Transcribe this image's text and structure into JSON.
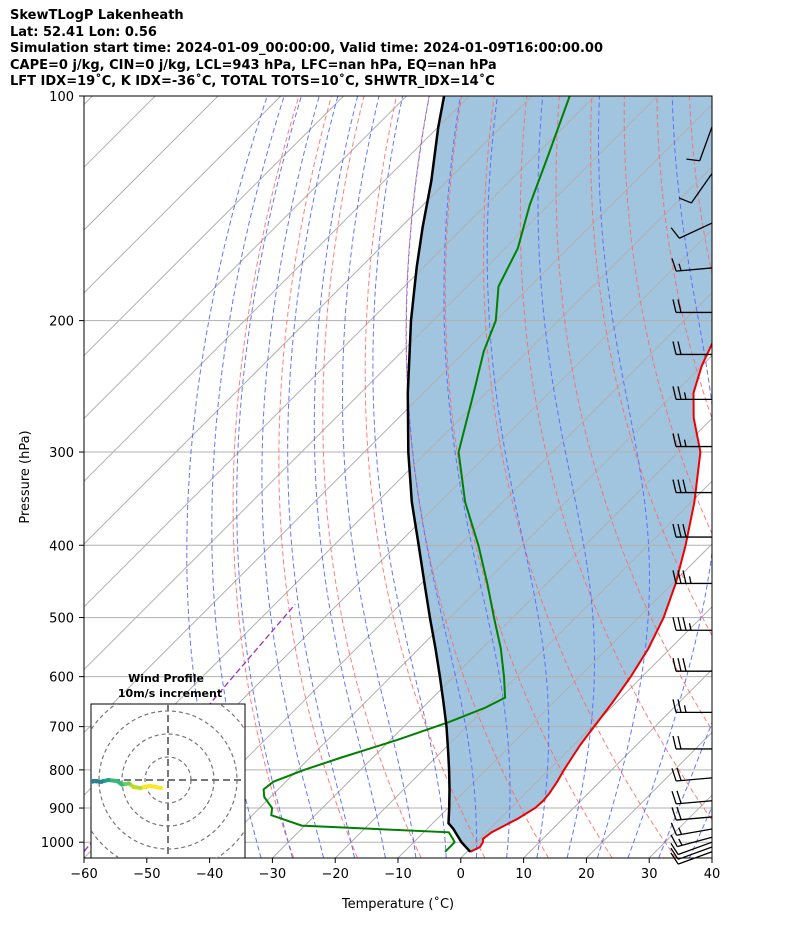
{
  "header": {
    "line1": "SkewTLogP Lakenheath",
    "line2": "Lat: 52.41   Lon: 0.56",
    "line3": "Simulation start time: 2024-01-09_00:00:00, Valid time: 2024-01-09T16:00:00.00",
    "line4": "CAPE=0 j/kg, CIN=0 j/kg, LCL=943 hPa, LFC=nan hPa, EQ=nan hPa",
    "line5": "LFT IDX=19˚C, K IDX=-36˚C, TOTAL TOTS=10˚C, SHWTR_IDX=14˚C"
  },
  "colors": {
    "temperature": "#ee0000",
    "dewpoint": "#008000",
    "parcel": "#000000",
    "shade": "#a2c5df",
    "dry_adiabat": "#ff6666",
    "moist_adiabat": "#5566ff",
    "mixing_ratio": "#9a33bb",
    "isotherm": "#b0b0b0"
  },
  "chart_data": {
    "type": "skewt-logp",
    "xlabel": "Temperature (˚C)",
    "ylabel": "Pressure (hPa)",
    "xlim": [
      -60,
      40
    ],
    "ylim": [
      1050,
      100
    ],
    "xticks": [
      "-60",
      "-50",
      "-40",
      "-30",
      "-20",
      "-10",
      "0",
      "10",
      "20",
      "30",
      "40"
    ],
    "yticks": [
      "100",
      "200",
      "300",
      "400",
      "500",
      "600",
      "700",
      "800",
      "900",
      "1000"
    ],
    "grid": true,
    "temperature_profile": {
      "p": [
        1030,
        1015,
        1000,
        990,
        970,
        950,
        930,
        900,
        880,
        860,
        830,
        800,
        770,
        740,
        700,
        650,
        600,
        550,
        500,
        450,
        400,
        350,
        300,
        270,
        250,
        230,
        210,
        200,
        180,
        160,
        140,
        120,
        110,
        100
      ],
      "t": [
        0.5,
        1.3,
        1.0,
        0.5,
        0.8,
        1.8,
        2.8,
        3.9,
        4.0,
        3.8,
        3.2,
        2.4,
        1.7,
        1.0,
        0.3,
        -0.6,
        -1.8,
        -3.5,
        -6.0,
        -9.5,
        -14.0,
        -19.5,
        -26.5,
        -33.0,
        -37.0,
        -40.0,
        -42.5,
        -44.0,
        -48.5,
        -53.5,
        -56.0,
        -58.5,
        -60.0,
        -61.5
      ]
    },
    "dewpoint_profile": {
      "p": [
        1030,
        1000,
        990,
        970,
        950,
        920,
        900,
        870,
        850,
        830,
        800,
        770,
        730,
        690,
        660,
        640,
        600,
        550,
        500,
        450,
        400,
        350,
        300,
        250,
        220,
        200,
        180,
        160,
        140,
        120,
        100
      ],
      "td": [
        -3.5,
        -3.5,
        -4.3,
        -6.0,
        -30.5,
        -37.0,
        -38.0,
        -41.0,
        -42.3,
        -42.0,
        -39.0,
        -35.0,
        -29.0,
        -23.5,
        -20.0,
        -18.5,
        -22.0,
        -27.0,
        -33.0,
        -39.5,
        -47.0,
        -56.0,
        -65.0,
        -72.0,
        -77.0,
        -80.0,
        -85.0,
        -88.0,
        -93.0,
        -98.0,
        -104.0
      ]
    },
    "parcel_profile": {
      "p": [
        1030,
        1000,
        980,
        960,
        943,
        900,
        850,
        800,
        750,
        700,
        650,
        600,
        550,
        500,
        450,
        400,
        350,
        300,
        250,
        200,
        170,
        150,
        130,
        110,
        100
      ],
      "t": [
        0.5,
        -2.4,
        -4.1,
        -5.8,
        -7.5,
        -9.8,
        -12.7,
        -15.9,
        -19.4,
        -23.2,
        -27.5,
        -32.2,
        -37.4,
        -43.2,
        -49.5,
        -56.5,
        -64.5,
        -73.0,
        -82.5,
        -93.5,
        -101.0,
        -106.5,
        -112.5,
        -120.0,
        -124.0
      ]
    },
    "wind_barbs": [
      {
        "p": 1030,
        "speed_kt": 10,
        "dir": 250
      },
      {
        "p": 1015,
        "speed_kt": 10,
        "dir": 250
      },
      {
        "p": 1000,
        "speed_kt": 10,
        "dir": 250
      },
      {
        "p": 985,
        "speed_kt": 15,
        "dir": 255
      },
      {
        "p": 960,
        "speed_kt": 15,
        "dir": 260
      },
      {
        "p": 925,
        "speed_kt": 20,
        "dir": 265
      },
      {
        "p": 880,
        "speed_kt": 20,
        "dir": 265
      },
      {
        "p": 820,
        "speed_kt": 20,
        "dir": 265
      },
      {
        "p": 750,
        "speed_kt": 20,
        "dir": 270
      },
      {
        "p": 670,
        "speed_kt": 25,
        "dir": 270
      },
      {
        "p": 590,
        "speed_kt": 30,
        "dir": 270
      },
      {
        "p": 520,
        "speed_kt": 35,
        "dir": 270
      },
      {
        "p": 450,
        "speed_kt": 35,
        "dir": 270
      },
      {
        "p": 390,
        "speed_kt": 30,
        "dir": 270
      },
      {
        "p": 340,
        "speed_kt": 30,
        "dir": 270
      },
      {
        "p": 295,
        "speed_kt": 25,
        "dir": 270
      },
      {
        "p": 255,
        "speed_kt": 25,
        "dir": 270
      },
      {
        "p": 222,
        "speed_kt": 20,
        "dir": 270
      },
      {
        "p": 195,
        "speed_kt": 20,
        "dir": 270
      },
      {
        "p": 170,
        "speed_kt": 15,
        "dir": 265
      },
      {
        "p": 148,
        "speed_kt": 10,
        "dir": 245
      },
      {
        "p": 127,
        "speed_kt": 10,
        "dir": 215
      },
      {
        "p": 110,
        "speed_kt": 10,
        "dir": 200
      }
    ],
    "hodograph": {
      "title_line1": "Wind Profile",
      "title_line2": "10m/s increment",
      "rings_ms": [
        10,
        20,
        30,
        40
      ],
      "u": [
        -3.0,
        -8.0,
        -12.0,
        -15.0,
        -17.0,
        -20.0,
        -22.0,
        -26.0,
        -29.0,
        -32.0,
        -35.0,
        -38.0,
        -41.0,
        -44.0,
        -46.0,
        -46.5,
        -45.0
      ],
      "v": [
        -3.5,
        -2.5,
        -3.5,
        -3.0,
        -1.5,
        -2.0,
        -0.5,
        0.0,
        -0.8,
        -0.5,
        -1.2,
        -2.0,
        -1.0,
        -1.8,
        -0.5,
        0.8,
        0.3
      ]
    }
  }
}
